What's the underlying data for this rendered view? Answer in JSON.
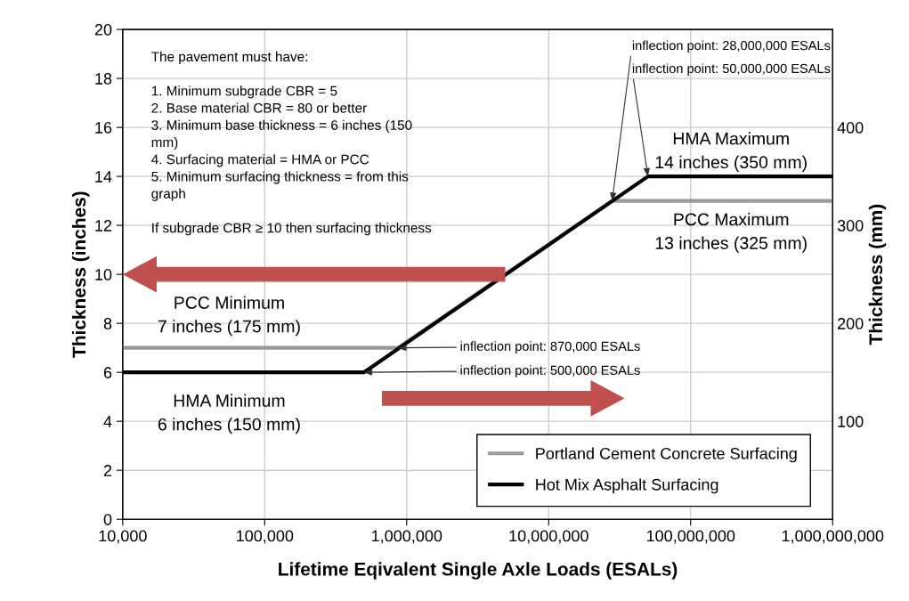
{
  "chart_data": {
    "type": "line",
    "xlabel": "Lifetime Eqivalent Single Axle Loads (ESALs)",
    "ylabel": "Thickness (inches)",
    "y2label": "Thickness (mm)",
    "series": [
      {
        "name": "Portland Cement Concrete Surfacing",
        "color": "#999999",
        "x": [
          10000,
          870000,
          28000000,
          1000000000
        ],
        "values": [
          7,
          7,
          13,
          13
        ]
      },
      {
        "name": "Hot Mix Asphalt Surfacing",
        "color": "#000000",
        "x": [
          10000,
          500000,
          50000000,
          1000000000
        ],
        "values": [
          6,
          6,
          14,
          14
        ]
      }
    ],
    "log": "x",
    "xlim": [
      10000,
      1000000000
    ],
    "xticks": [
      {
        "value": 10000,
        "label": "10,000"
      },
      {
        "value": 100000,
        "label": "100,000"
      },
      {
        "value": 1000000,
        "label": "1,000,000"
      },
      {
        "value": 10000000,
        "label": "10,000,000"
      },
      {
        "value": 100000000,
        "label": "100,000,000"
      },
      {
        "value": 1000000000,
        "label": "1,000,000,000"
      }
    ],
    "ylim": [
      0,
      20
    ],
    "yticks": [
      0,
      2,
      4,
      6,
      8,
      10,
      12,
      14,
      16,
      18,
      20
    ],
    "y2lim": [
      0,
      500
    ],
    "y2ticks": [
      100,
      200,
      300,
      400
    ],
    "grid": true,
    "legend": "bottom right",
    "line_style": "solid",
    "marker": "none",
    "annotations": [
      "The pavement must have:\n\n1. Minimum subgrade CBR = 5\n2. Base material CBR = 80 or better\n3. Minimum base thickness = 6 inches (150\nmm)\n4. Surfacing material = HMA or PCC\n5. Minimum surfacing thickness = from this\ngraph\n\nIf subgrade CBR ≥ 10 then surfacing thickness",
      {
        "text": "inflection point: 28,000,000 ESALs",
        "x": 28000000,
        "y": 13
      },
      {
        "text": "inflection point: 50,000,000 ESALs",
        "x": 50000000,
        "y": 14
      },
      {
        "text": "inflection point: 870,000 ESALs",
        "x": 870000,
        "y": 7
      },
      {
        "text": "inflection point: 500,000 ESALs",
        "x": 500000,
        "y": 6
      },
      "HMA Maximum\n14 inches (350 mm)",
      "PCC Maximum\n13 inches (325 mm)",
      "PCC Minimum\n7 inches (175 mm)",
      "HMA Minimum\n6 inches (150 mm)"
    ]
  }
}
